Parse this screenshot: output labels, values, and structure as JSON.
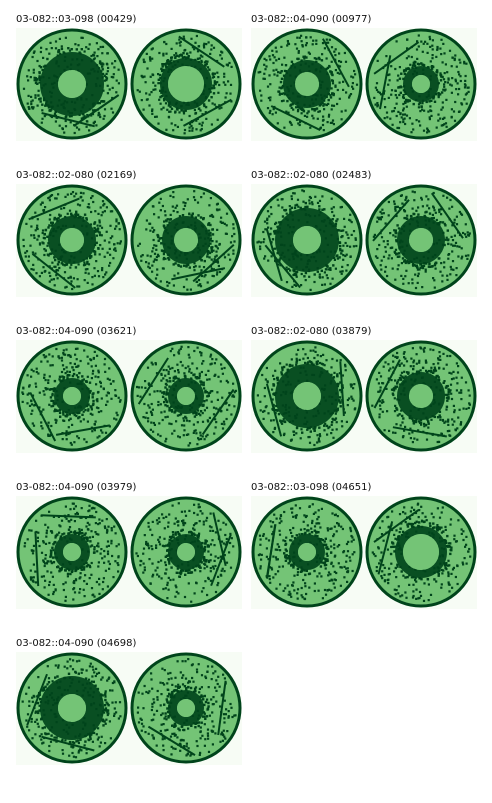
{
  "colors": {
    "background": "#f7fcf5",
    "light_green": "#74c476",
    "dark_green": "#00441b",
    "mid_green": "#238b45"
  },
  "panels": [
    {
      "label": "03-082::03-098 (00429)",
      "left_ring": "large",
      "right_ring": "filled"
    },
    {
      "label": "03-082::04-090 (00977)",
      "left_ring": "medium",
      "right_ring": "small"
    },
    {
      "label": "03-082::02-080 (02169)",
      "left_ring": "medium",
      "right_ring": "medium"
    },
    {
      "label": "03-082::02-080 (02483)",
      "left_ring": "large",
      "right_ring": "medium"
    },
    {
      "label": "03-082::04-090 (03621)",
      "left_ring": "small",
      "right_ring": "small"
    },
    {
      "label": "03-082::02-080 (03879)",
      "left_ring": "large",
      "right_ring": "medium"
    },
    {
      "label": "03-082::04-090 (03979)",
      "left_ring": "small",
      "right_ring": "small"
    },
    {
      "label": "03-082::03-098 (04651)",
      "left_ring": "small",
      "right_ring": "filled"
    },
    {
      "label": "03-082::04-090 (04698)",
      "left_ring": "large",
      "right_ring": "small"
    }
  ]
}
